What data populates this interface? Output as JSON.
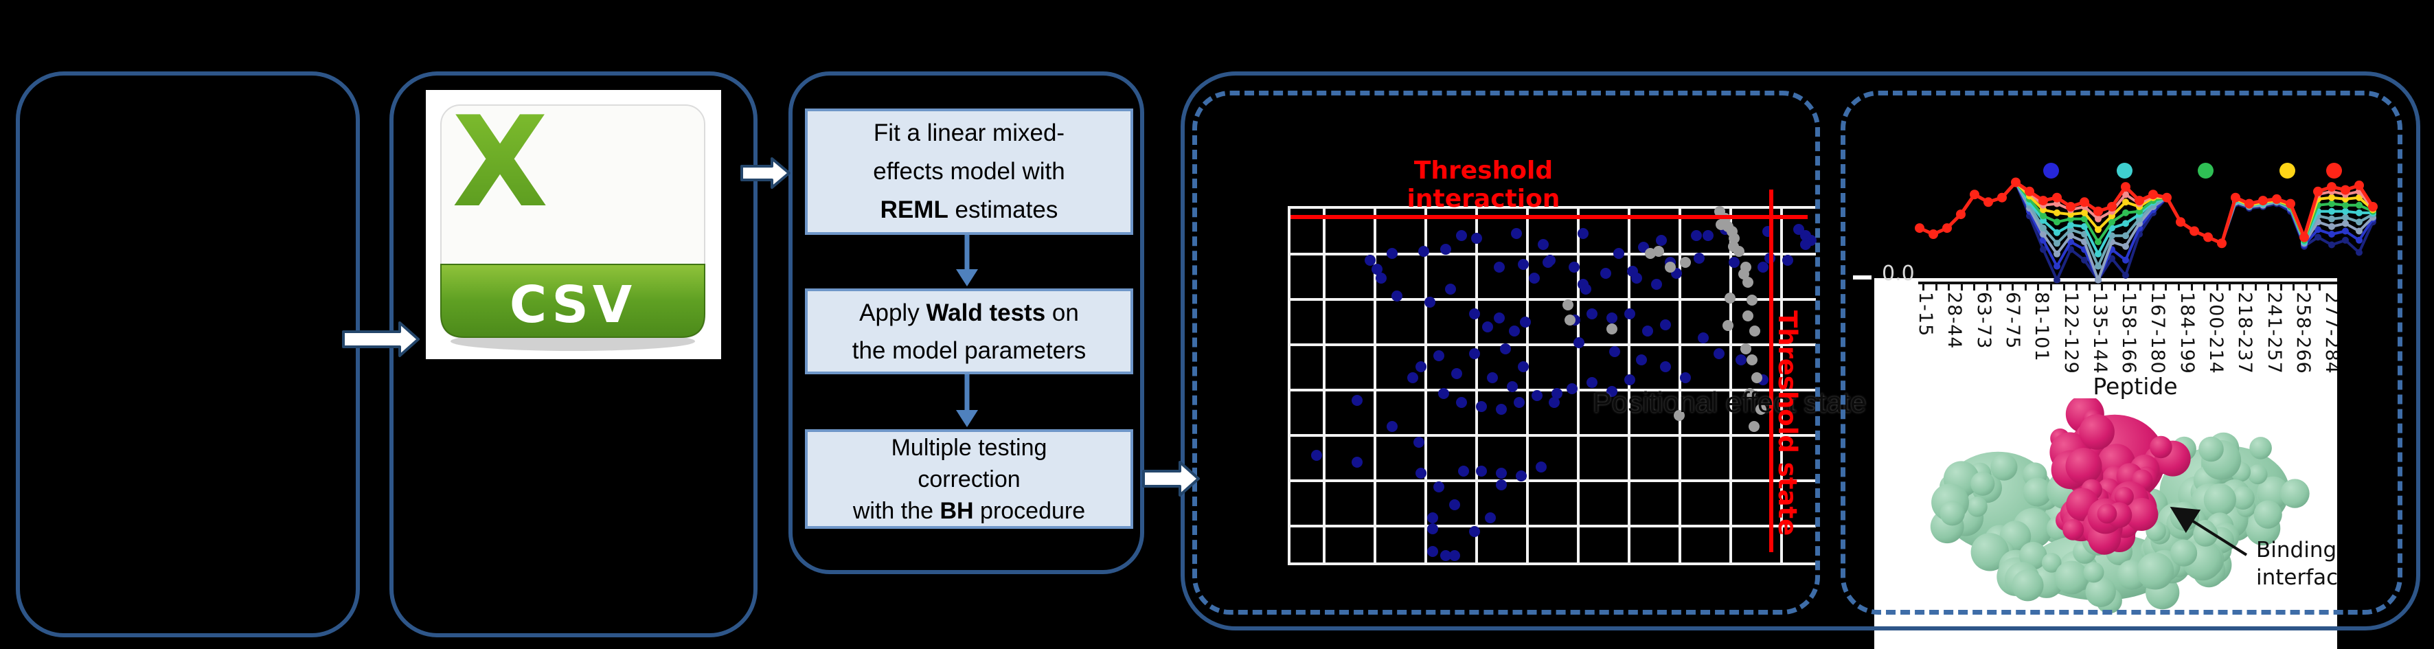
{
  "figure": {
    "csv_icon": {
      "letter": "X",
      "label": "CSV"
    },
    "model_steps": [
      "Fit a linear mixed-\neffects model with\n**REML** estimates",
      "Apply **Wald tests** on\nthe model parameters",
      "Multiple testing\ncorrection\nwith the **BH** procedure"
    ]
  },
  "colors": {
    "panel_border": "#2e5689",
    "dashed_border": "#3e6da8",
    "flowbox_fill": "#dce6f2",
    "flowbox_border": "#6e96c8",
    "flow_arrow": "#4f81bd",
    "block_arrow_fill": "#ffffff",
    "block_arrow_stroke": "#24466b",
    "threshold_red": "#ff0000",
    "scatter_blue": "#12128f",
    "scatter_gray": "#9e9e9e",
    "grid_white": "#f2f2f2",
    "csv_green_light": "#a6ce39",
    "csv_green_dark": "#4c8a1a"
  },
  "chart_data": [
    {
      "type": "scatter",
      "title": "Threshold interaction",
      "vline_label": "Threshold state",
      "faint_label": "Positional effect state",
      "grid": {
        "v_start": 49,
        "v_step": 74,
        "v_count": 10,
        "h_start": 66,
        "h_step": 66,
        "h_count": 7
      },
      "threshold_hline_y": 12,
      "threshold_vline_x": 700,
      "point_radius": 8,
      "points_blue": [
        [
          116,
          75
        ],
        [
          126,
          88
        ],
        [
          132,
          101
        ],
        [
          148,
          65
        ],
        [
          194,
          62
        ],
        [
          226,
          59
        ],
        [
          249,
          39
        ],
        [
          271,
          43
        ],
        [
          329,
          36
        ],
        [
          368,
          52
        ],
        [
          375,
          78
        ],
        [
          426,
          36
        ],
        [
          430,
          117
        ],
        [
          304,
          85
        ],
        [
          339,
          81
        ],
        [
          355,
          101
        ],
        [
          378,
          75
        ],
        [
          413,
          85
        ],
        [
          426,
          110
        ],
        [
          478,
          65
        ],
        [
          498,
          91
        ],
        [
          504,
          101
        ],
        [
          459,
          94
        ],
        [
          533,
          110
        ],
        [
          553,
          78
        ],
        [
          562,
          94
        ],
        [
          591,
          39
        ],
        [
          633,
          30
        ],
        [
          646,
          78
        ],
        [
          688,
          85
        ],
        [
          698,
          72
        ],
        [
          724,
          75
        ],
        [
          750,
          39
        ],
        [
          758,
          46
        ],
        [
          155,
          127
        ],
        [
          203,
          136
        ],
        [
          233,
          117
        ],
        [
          268,
          153
        ],
        [
          304,
          159
        ],
        [
          326,
          178
        ],
        [
          342,
          165
        ],
        [
          287,
          172
        ],
        [
          313,
          204
        ],
        [
          339,
          230
        ],
        [
          294,
          246
        ],
        [
          323,
          259
        ],
        [
          268,
          211
        ],
        [
          242,
          240
        ],
        [
          216,
          214
        ],
        [
          190,
          230
        ],
        [
          178,
          246
        ],
        [
          223,
          269
        ],
        [
          249,
          282
        ],
        [
          278,
          288
        ],
        [
          307,
          292
        ],
        [
          333,
          282
        ],
        [
          359,
          272
        ],
        [
          384,
          282
        ],
        [
          410,
          262
        ],
        [
          439,
          253
        ],
        [
          468,
          266
        ],
        [
          494,
          249
        ],
        [
          414,
          162
        ],
        [
          439,
          153
        ],
        [
          468,
          159
        ],
        [
          494,
          153
        ],
        [
          520,
          178
        ],
        [
          546,
          169
        ],
        [
          420,
          195
        ],
        [
          472,
          208
        ],
        [
          511,
          220
        ],
        [
          546,
          230
        ],
        [
          575,
          246
        ],
        [
          601,
          188
        ],
        [
          624,
          211
        ],
        [
          656,
          220
        ],
        [
          688,
          249
        ],
        [
          97,
          279
        ],
        [
          148,
          317
        ],
        [
          187,
          340
        ],
        [
          38,
          359
        ],
        [
          97,
          369
        ],
        [
          190,
          385
        ],
        [
          216,
          405
        ],
        [
          252,
          382
        ],
        [
          278,
          382
        ],
        [
          307,
          385
        ],
        [
          336,
          389
        ],
        [
          307,
          402
        ],
        [
          365,
          376
        ],
        [
          388,
          269
        ],
        [
          207,
          450
        ],
        [
          239,
          431
        ],
        [
          268,
          470
        ],
        [
          291,
          450
        ],
        [
          207,
          499
        ],
        [
          239,
          505
        ],
        [
          226,
          505
        ],
        [
          207,
          466
        ],
        [
          514,
          56
        ],
        [
          540,
          46
        ],
        [
          595,
          72
        ],
        [
          608,
          39
        ],
        [
          695,
          33
        ],
        [
          740,
          30
        ],
        [
          750,
          52
        ]
      ],
      "points_gray": [
        [
          536,
          62
        ],
        [
          553,
          85
        ],
        [
          575,
          78
        ],
        [
          637,
          26
        ],
        [
          646,
          43
        ],
        [
          653,
          62
        ],
        [
          663,
          85
        ],
        [
          666,
          107
        ],
        [
          672,
          133
        ],
        [
          666,
          156
        ],
        [
          676,
          178
        ],
        [
          663,
          204
        ],
        [
          672,
          220
        ],
        [
          679,
          246
        ],
        [
          669,
          269
        ],
        [
          685,
          292
        ],
        [
          675,
          317
        ],
        [
          566,
          301
        ],
        [
          404,
          140
        ],
        [
          407,
          162
        ],
        [
          468,
          175
        ],
        [
          524,
          65
        ],
        [
          627,
          23
        ],
        [
          643,
          33
        ],
        [
          625,
          4
        ],
        [
          633,
          14
        ],
        [
          645,
          55
        ],
        [
          660,
          95
        ],
        [
          640,
          130
        ],
        [
          637,
          170
        ]
      ]
    },
    {
      "type": "line",
      "xlabel": "Peptide",
      "ytick_label": "0.0",
      "x_count": 34,
      "legend_colors": [
        "#2626d8",
        "#3fd0d0",
        "#2fbf55",
        "#ffd517",
        "#ff2517"
      ],
      "xticklabels": [
        "1-15",
        "28-44",
        "63-73",
        "67-75",
        "81-101",
        "122-129",
        "135-144",
        "158-166",
        "167-180",
        "184-199",
        "200-214",
        "218-237",
        "241-257",
        "258-266",
        "277-284"
      ],
      "annotation": [
        "Binding",
        "interface"
      ],
      "series": [
        {
          "id": "navy",
          "color": "#1a2380",
          "values": [
            0.36,
            0.32,
            0.36,
            0.45,
            0.58,
            0.53,
            0.56,
            0.66,
            0.44,
            0.22,
            0.02,
            0.22,
            0.15,
            0.02,
            0.16,
            0.05,
            0.32,
            0.46,
            0.56,
            0.4,
            0.34,
            0.3,
            0.26,
            0.52,
            0.49,
            0.5,
            0.52,
            0.47,
            0.24,
            0.3,
            0.25,
            0.28,
            0.2,
            0.4
          ]
        },
        {
          "id": "blue",
          "color": "#2937cc",
          "values": [
            0.36,
            0.32,
            0.36,
            0.45,
            0.58,
            0.53,
            0.56,
            0.66,
            0.47,
            0.28,
            0.11,
            0.27,
            0.22,
            0.02,
            0.22,
            0.15,
            0.36,
            0.48,
            0.56,
            0.4,
            0.34,
            0.3,
            0.26,
            0.53,
            0.5,
            0.51,
            0.53,
            0.48,
            0.25,
            0.35,
            0.32,
            0.34,
            0.28,
            0.42
          ]
        },
        {
          "id": "steel",
          "color": "#8fa3c0",
          "values": [
            0.36,
            0.32,
            0.36,
            0.45,
            0.58,
            0.53,
            0.56,
            0.66,
            0.49,
            0.32,
            0.19,
            0.31,
            0.27,
            0.02,
            0.27,
            0.24,
            0.39,
            0.5,
            0.56,
            0.4,
            0.34,
            0.3,
            0.26,
            0.53,
            0.5,
            0.51,
            0.53,
            0.49,
            0.26,
            0.4,
            0.37,
            0.39,
            0.34,
            0.43
          ]
        },
        {
          "id": "cadet",
          "color": "#6fa8b8",
          "values": [
            0.36,
            0.32,
            0.36,
            0.45,
            0.58,
            0.53,
            0.56,
            0.66,
            0.51,
            0.36,
            0.26,
            0.35,
            0.32,
            0.11,
            0.31,
            0.31,
            0.42,
            0.51,
            0.56,
            0.4,
            0.34,
            0.3,
            0.26,
            0.54,
            0.5,
            0.52,
            0.53,
            0.49,
            0.27,
            0.44,
            0.42,
            0.43,
            0.4,
            0.45
          ]
        },
        {
          "id": "cyan",
          "color": "#3fd0d0",
          "values": [
            0.36,
            0.32,
            0.36,
            0.45,
            0.58,
            0.53,
            0.56,
            0.66,
            0.53,
            0.41,
            0.33,
            0.38,
            0.37,
            0.19,
            0.36,
            0.39,
            0.45,
            0.53,
            0.56,
            0.4,
            0.34,
            0.3,
            0.26,
            0.54,
            0.51,
            0.52,
            0.54,
            0.5,
            0.27,
            0.47,
            0.47,
            0.47,
            0.46,
            0.46
          ]
        },
        {
          "id": "green",
          "color": "#2fbf55",
          "values": [
            0.36,
            0.32,
            0.36,
            0.45,
            0.58,
            0.53,
            0.56,
            0.66,
            0.55,
            0.44,
            0.4,
            0.42,
            0.42,
            0.27,
            0.4,
            0.46,
            0.47,
            0.54,
            0.56,
            0.4,
            0.34,
            0.3,
            0.26,
            0.55,
            0.51,
            0.53,
            0.54,
            0.5,
            0.28,
            0.51,
            0.52,
            0.51,
            0.51,
            0.47
          ]
        },
        {
          "id": "yellow",
          "color": "#ffd517",
          "values": [
            0.36,
            0.32,
            0.36,
            0.45,
            0.58,
            0.53,
            0.56,
            0.66,
            0.57,
            0.48,
            0.46,
            0.45,
            0.46,
            0.35,
            0.44,
            0.53,
            0.5,
            0.56,
            0.56,
            0.4,
            0.34,
            0.3,
            0.26,
            0.55,
            0.51,
            0.53,
            0.54,
            0.51,
            0.29,
            0.55,
            0.56,
            0.55,
            0.56,
            0.48
          ]
        },
        {
          "id": "salmon",
          "color": "#f48c8c",
          "values": [
            0.36,
            0.32,
            0.36,
            0.45,
            0.58,
            0.53,
            0.56,
            0.66,
            0.59,
            0.51,
            0.52,
            0.48,
            0.5,
            0.42,
            0.47,
            0.58,
            0.52,
            0.57,
            0.56,
            0.4,
            0.34,
            0.3,
            0.26,
            0.56,
            0.52,
            0.54,
            0.55,
            0.52,
            0.3,
            0.58,
            0.6,
            0.58,
            0.6,
            0.49
          ]
        },
        {
          "id": "red",
          "color": "#ff2517",
          "values": [
            0.36,
            0.32,
            0.36,
            0.45,
            0.58,
            0.53,
            0.56,
            0.66,
            0.6,
            0.54,
            0.56,
            0.5,
            0.53,
            0.47,
            0.5,
            0.63,
            0.54,
            0.58,
            0.56,
            0.4,
            0.34,
            0.3,
            0.26,
            0.56,
            0.52,
            0.54,
            0.55,
            0.52,
            0.3,
            0.6,
            0.63,
            0.61,
            0.64,
            0.5
          ]
        }
      ]
    }
  ]
}
